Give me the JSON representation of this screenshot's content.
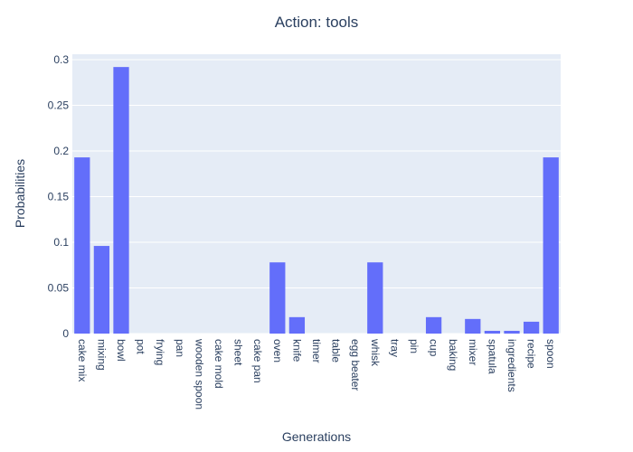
{
  "chart_data": {
    "type": "bar",
    "title": "Action: tools",
    "x_label": "Generations",
    "y_label": "Probabilities",
    "categories": [
      "cake mix",
      "mixing",
      "bowl",
      "pot",
      "frying",
      "pan",
      "wooden spoon",
      "cake mold",
      "sheet",
      "cake pan",
      "oven",
      "knife",
      "timer",
      "table",
      "egg beater",
      "whisk",
      "tray",
      "pin",
      "cup",
      "baking",
      "mixer",
      "spatula",
      "ingredients",
      "recipe",
      "spoon"
    ],
    "values": [
      0.193,
      0.096,
      0.292,
      0,
      0,
      0,
      0,
      0,
      0,
      0,
      0.078,
      0.018,
      0,
      0,
      0,
      0.078,
      0,
      0,
      0.018,
      0,
      0.016,
      0.003,
      0.003,
      0.013,
      0.193
    ],
    "color": "#636efa",
    "ylim": [
      0,
      0.306
    ],
    "yticks": [
      0,
      0.05,
      0.1,
      0.15,
      0.2,
      0.25,
      0.3
    ],
    "grid": true
  }
}
